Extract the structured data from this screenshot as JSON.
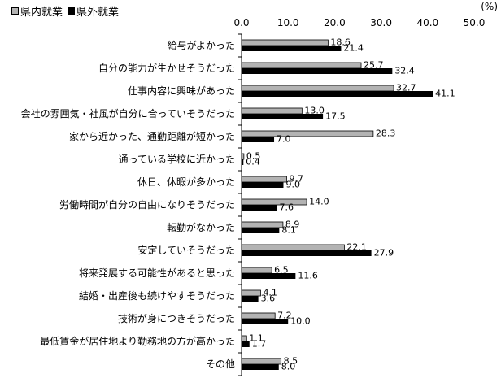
{
  "chart_data": {
    "type": "bar",
    "orientation": "horizontal",
    "unit": "(%)",
    "xlim": [
      0,
      50
    ],
    "ticks": [
      "0.0",
      "10.0",
      "20.0",
      "30.0",
      "40.0",
      "50.0"
    ],
    "grid": false,
    "legend_position": "top-left",
    "categories": [
      "給与がよかった",
      "自分の能力が生かせそうだった",
      "仕事内容に興味があった",
      "会社の雰囲気・社風が自分に合っていそうだった",
      "家から近かった、通勤距離が短かった",
      "通っている学校に近かった",
      "休日、休暇が多かった",
      "労働時間が自分の自由になりそうだった",
      "転勤がなかった",
      "安定していそうだった",
      "将来発展する可能性があると思った",
      "結婚・出産後も続けやすそうだった",
      "技術が身につきそうだった",
      "最低賃金が居住地より勤務地の方が高かった",
      "その他"
    ],
    "series": [
      {
        "name": "県内就業",
        "color": "#b3b3b3",
        "values": [
          18.6,
          25.7,
          32.7,
          13.0,
          28.3,
          0.5,
          9.7,
          14.0,
          8.9,
          22.1,
          6.5,
          4.1,
          7.2,
          1.1,
          8.5
        ],
        "labels": [
          "18.6",
          "25.7",
          "32.7",
          "13.0",
          "28.3",
          "0.5",
          "9.7",
          "14.0",
          "8.9",
          "22.1",
          "6.5",
          "4.1",
          "7.2",
          "1.1",
          "8.5"
        ]
      },
      {
        "name": "県外就業",
        "color": "#000000",
        "values": [
          21.4,
          32.4,
          41.1,
          17.5,
          7.0,
          0.4,
          9.0,
          7.6,
          8.1,
          27.9,
          11.6,
          3.6,
          10.0,
          1.7,
          8.0
        ],
        "labels": [
          "21.4",
          "32.4",
          "41.1",
          "17.5",
          "7.0",
          "0.4",
          "9.0",
          "7.6",
          "8.1",
          "27.9",
          "11.6",
          "3.6",
          "10.0",
          "1.7",
          "8.0"
        ]
      }
    ]
  }
}
